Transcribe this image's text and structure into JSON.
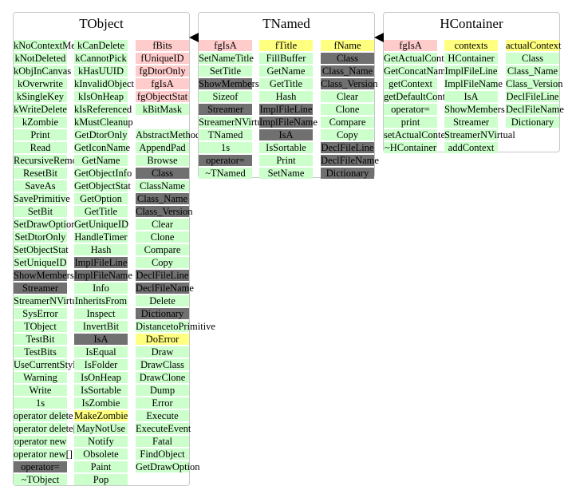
{
  "colors": {
    "green": "#ccffcc",
    "pink": "#ffcccc",
    "yellow": "#ffff80",
    "gray": "#707070",
    "white": "#ffffff",
    "border": "#c8c8c8"
  },
  "classes": [
    {
      "id": "tobject",
      "title": "TObject",
      "columns": [
        {
          "cells": [
            {
              "label": "kNoContextMenu",
              "color": "green"
            },
            {
              "label": "kNotDeleted",
              "color": "green"
            },
            {
              "label": "kObjInCanvas",
              "color": "green"
            },
            {
              "label": "kOverwrite",
              "color": "green"
            },
            {
              "label": "kSingleKey",
              "color": "green"
            },
            {
              "label": "kWriteDelete",
              "color": "green"
            },
            {
              "label": "kZombie",
              "color": "green"
            },
            {
              "label": "Print",
              "color": "green"
            },
            {
              "label": "Read",
              "color": "green"
            },
            {
              "label": "RecursiveRemove",
              "color": "green"
            },
            {
              "label": "ResetBit",
              "color": "green"
            },
            {
              "label": "SaveAs",
              "color": "green"
            },
            {
              "label": "SavePrimitive",
              "color": "green"
            },
            {
              "label": "SetBit",
              "color": "green"
            },
            {
              "label": "SetDrawOption",
              "color": "green"
            },
            {
              "label": "SetDtorOnly",
              "color": "green"
            },
            {
              "label": "SetObjectStat",
              "color": "green"
            },
            {
              "label": "SetUniqueID",
              "color": "green"
            },
            {
              "label": "ShowMembers",
              "color": "gray"
            },
            {
              "label": "Streamer",
              "color": "gray"
            },
            {
              "label": "StreamerNVirtual",
              "color": "green"
            },
            {
              "label": "SysError",
              "color": "green"
            },
            {
              "label": "TObject",
              "color": "green"
            },
            {
              "label": "TestBit",
              "color": "green"
            },
            {
              "label": "TestBits",
              "color": "green"
            },
            {
              "label": "UseCurrentStyle",
              "color": "green"
            },
            {
              "label": "Warning",
              "color": "green"
            },
            {
              "label": "Write",
              "color": "green"
            },
            {
              "label": "1s",
              "color": "green"
            },
            {
              "label": "operator delete",
              "color": "green"
            },
            {
              "label": "operator delete[]",
              "color": "green"
            },
            {
              "label": "operator new",
              "color": "green"
            },
            {
              "label": "operator new[]",
              "color": "green"
            },
            {
              "label": "operator=",
              "color": "gray"
            },
            {
              "label": "~TObject",
              "color": "green"
            }
          ]
        },
        {
          "cells": [
            {
              "label": "kCanDelete",
              "color": "green"
            },
            {
              "label": "kCannotPick",
              "color": "green"
            },
            {
              "label": "kHasUUID",
              "color": "green"
            },
            {
              "label": "kInvalidObject",
              "color": "green"
            },
            {
              "label": "kIsOnHeap",
              "color": "green"
            },
            {
              "label": "kIsReferenced",
              "color": "green"
            },
            {
              "label": "kMustCleanup",
              "color": "green"
            },
            {
              "label": "GetDtorOnly",
              "color": "green"
            },
            {
              "label": "GetIconName",
              "color": "green"
            },
            {
              "label": "GetName",
              "color": "green"
            },
            {
              "label": "GetObjectInfo",
              "color": "green"
            },
            {
              "label": "GetObjectStat",
              "color": "green"
            },
            {
              "label": "GetOption",
              "color": "green"
            },
            {
              "label": "GetTitle",
              "color": "green"
            },
            {
              "label": "GetUniqueID",
              "color": "green"
            },
            {
              "label": "HandleTimer",
              "color": "green"
            },
            {
              "label": "Hash",
              "color": "green"
            },
            {
              "label": "ImplFileLine",
              "color": "gray"
            },
            {
              "label": "ImplFileName",
              "color": "gray"
            },
            {
              "label": "Info",
              "color": "green"
            },
            {
              "label": "InheritsFrom",
              "color": "green"
            },
            {
              "label": "Inspect",
              "color": "green"
            },
            {
              "label": "InvertBit",
              "color": "green"
            },
            {
              "label": "IsA",
              "color": "gray"
            },
            {
              "label": "IsEqual",
              "color": "green"
            },
            {
              "label": "IsFolder",
              "color": "green"
            },
            {
              "label": "IsOnHeap",
              "color": "green"
            },
            {
              "label": "IsSortable",
              "color": "green"
            },
            {
              "label": "IsZombie",
              "color": "green"
            },
            {
              "label": "MakeZombie",
              "color": "yellow"
            },
            {
              "label": "MayNotUse",
              "color": "green"
            },
            {
              "label": "Notify",
              "color": "green"
            },
            {
              "label": "Obsolete",
              "color": "green"
            },
            {
              "label": "Paint",
              "color": "green"
            },
            {
              "label": "Pop",
              "color": "green"
            }
          ]
        },
        {
          "cells": [
            {
              "label": "fBits",
              "color": "pink"
            },
            {
              "label": "fUniqueID",
              "color": "pink"
            },
            {
              "label": "fgDtorOnly",
              "color": "pink"
            },
            {
              "label": "fgIsA",
              "color": "pink"
            },
            {
              "label": "fgObjectStat",
              "color": "pink"
            },
            {
              "label": "kBitMask",
              "color": "green"
            },
            {
              "label": "",
              "color": "white"
            },
            {
              "label": "AbstractMethod",
              "color": "green"
            },
            {
              "label": "AppendPad",
              "color": "green"
            },
            {
              "label": "Browse",
              "color": "green"
            },
            {
              "label": "Class",
              "color": "gray"
            },
            {
              "label": "ClassName",
              "color": "green"
            },
            {
              "label": "Class_Name",
              "color": "gray"
            },
            {
              "label": "Class_Version",
              "color": "gray"
            },
            {
              "label": "Clear",
              "color": "green"
            },
            {
              "label": "Clone",
              "color": "green"
            },
            {
              "label": "Compare",
              "color": "green"
            },
            {
              "label": "Copy",
              "color": "green"
            },
            {
              "label": "DeclFileLine",
              "color": "gray"
            },
            {
              "label": "DeclFileName",
              "color": "gray"
            },
            {
              "label": "Delete",
              "color": "green"
            },
            {
              "label": "Dictionary",
              "color": "gray"
            },
            {
              "label": "DistancetoPrimitive",
              "color": "green"
            },
            {
              "label": "DoError",
              "color": "yellow"
            },
            {
              "label": "Draw",
              "color": "green"
            },
            {
              "label": "DrawClass",
              "color": "green"
            },
            {
              "label": "DrawClone",
              "color": "green"
            },
            {
              "label": "Dump",
              "color": "green"
            },
            {
              "label": "Error",
              "color": "green"
            },
            {
              "label": "Execute",
              "color": "green"
            },
            {
              "label": "ExecuteEvent",
              "color": "green"
            },
            {
              "label": "Fatal",
              "color": "green"
            },
            {
              "label": "FindObject",
              "color": "green"
            },
            {
              "label": "GetDrawOption",
              "color": "green"
            }
          ]
        }
      ]
    },
    {
      "id": "tnamed",
      "title": "TNamed",
      "columns": [
        {
          "cells": [
            {
              "label": "fgIsA",
              "color": "pink"
            },
            {
              "label": "SetNameTitle",
              "color": "green"
            },
            {
              "label": "SetTitle",
              "color": "green"
            },
            {
              "label": "ShowMembers",
              "color": "gray"
            },
            {
              "label": "Sizeof",
              "color": "green"
            },
            {
              "label": "Streamer",
              "color": "gray"
            },
            {
              "label": "StreamerNVirtual",
              "color": "green"
            },
            {
              "label": "TNamed",
              "color": "green"
            },
            {
              "label": "1s",
              "color": "green"
            },
            {
              "label": "operator=",
              "color": "gray"
            },
            {
              "label": "~TNamed",
              "color": "green"
            }
          ]
        },
        {
          "cells": [
            {
              "label": "fTitle",
              "color": "yellow"
            },
            {
              "label": "FillBuffer",
              "color": "green"
            },
            {
              "label": "GetName",
              "color": "green"
            },
            {
              "label": "GetTitle",
              "color": "green"
            },
            {
              "label": "Hash",
              "color": "green"
            },
            {
              "label": "ImplFileLine",
              "color": "gray"
            },
            {
              "label": "ImplFileName",
              "color": "gray"
            },
            {
              "label": "IsA",
              "color": "gray"
            },
            {
              "label": "IsSortable",
              "color": "green"
            },
            {
              "label": "Print",
              "color": "green"
            },
            {
              "label": "SetName",
              "color": "green"
            }
          ]
        },
        {
          "cells": [
            {
              "label": "fName",
              "color": "yellow"
            },
            {
              "label": "Class",
              "color": "gray"
            },
            {
              "label": "Class_Name",
              "color": "gray"
            },
            {
              "label": "Class_Version",
              "color": "gray"
            },
            {
              "label": "Clear",
              "color": "green"
            },
            {
              "label": "Clone",
              "color": "green"
            },
            {
              "label": "Compare",
              "color": "green"
            },
            {
              "label": "Copy",
              "color": "green"
            },
            {
              "label": "DeclFileLine",
              "color": "gray"
            },
            {
              "label": "DeclFileName",
              "color": "gray"
            },
            {
              "label": "Dictionary",
              "color": "gray"
            }
          ]
        }
      ]
    },
    {
      "id": "hcontainer",
      "title": "HContainer",
      "columns": [
        {
          "cells": [
            {
              "label": "fgIsA",
              "color": "pink"
            },
            {
              "label": "GetActualContext",
              "color": "green"
            },
            {
              "label": "GetConcatName",
              "color": "green"
            },
            {
              "label": "getContext",
              "color": "green"
            },
            {
              "label": "getDefaultContext",
              "color": "green"
            },
            {
              "label": "operator=",
              "color": "green"
            },
            {
              "label": "print",
              "color": "green"
            },
            {
              "label": "setActualContext",
              "color": "green"
            },
            {
              "label": "~HContainer",
              "color": "green"
            }
          ]
        },
        {
          "cells": [
            {
              "label": "contexts",
              "color": "yellow"
            },
            {
              "label": "HContainer",
              "color": "green"
            },
            {
              "label": "ImplFileLine",
              "color": "green"
            },
            {
              "label": "ImplFileName",
              "color": "green"
            },
            {
              "label": "IsA",
              "color": "green"
            },
            {
              "label": "ShowMembers",
              "color": "green"
            },
            {
              "label": "Streamer",
              "color": "green"
            },
            {
              "label": "StreamerNVirtual",
              "color": "green"
            },
            {
              "label": "addContext",
              "color": "green"
            }
          ]
        },
        {
          "cells": [
            {
              "label": "actualContext",
              "color": "yellow"
            },
            {
              "label": "Class",
              "color": "green"
            },
            {
              "label": "Class_Name",
              "color": "green"
            },
            {
              "label": "Class_Version",
              "color": "green"
            },
            {
              "label": "DeclFileLine",
              "color": "green"
            },
            {
              "label": "DeclFileName",
              "color": "green"
            },
            {
              "label": "Dictionary",
              "color": "green"
            }
          ]
        }
      ]
    }
  ],
  "edges": [
    {
      "from": "tnamed",
      "to": "tobject"
    },
    {
      "from": "hcontainer",
      "to": "tnamed"
    }
  ]
}
